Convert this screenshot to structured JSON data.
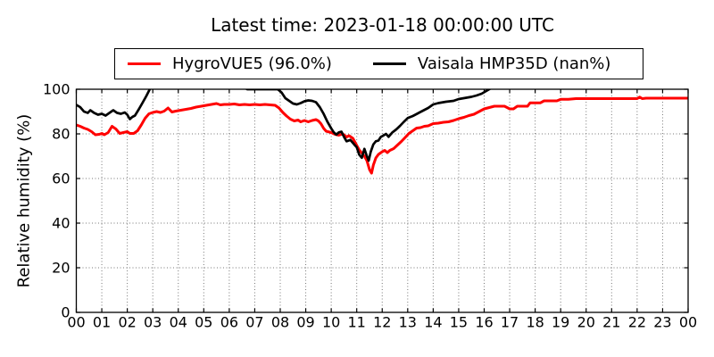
{
  "chart_data": {
    "type": "line",
    "title": "Latest time: 2023-01-18 00:00:00 UTC",
    "xlabel": "",
    "ylabel": "Relative humidity (%)",
    "xlim": [
      0,
      24
    ],
    "ylim": [
      0,
      100
    ],
    "x_unit": "hour (UTC)",
    "xtick_hours": [
      0,
      1,
      2,
      3,
      4,
      5,
      6,
      7,
      8,
      9,
      10,
      11,
      12,
      13,
      14,
      15,
      16,
      17,
      18,
      19,
      20,
      21,
      22,
      23,
      24
    ],
    "xtick_labels": [
      "00",
      "01",
      "02",
      "03",
      "04",
      "05",
      "06",
      "07",
      "08",
      "09",
      "10",
      "11",
      "12",
      "13",
      "14",
      "15",
      "16",
      "17",
      "18",
      "19",
      "20",
      "21",
      "22",
      "23",
      "00"
    ],
    "ytick_values": [
      0,
      20,
      40,
      60,
      80,
      100
    ],
    "ytick_labels": [
      "0",
      "20",
      "40",
      "60",
      "80",
      "100"
    ],
    "grid": {
      "style": "dotted",
      "color": "#777777",
      "on": true
    },
    "legend_position": "upper center, above axes",
    "series": [
      {
        "name": "HygroVUE5",
        "legend_label": "HygroVUE5 (96.0%)",
        "color": "#ff0000",
        "line_width": 3,
        "points": [
          [
            0,
            84
          ],
          [
            0.15,
            83.4
          ],
          [
            0.3,
            82.6
          ],
          [
            0.45,
            82
          ],
          [
            0.6,
            81
          ],
          [
            0.75,
            79.6
          ],
          [
            0.9,
            79.8
          ],
          [
            1.0,
            80.2
          ],
          [
            1.1,
            79.6
          ],
          [
            1.25,
            80.6
          ],
          [
            1.4,
            83.4
          ],
          [
            1.55,
            82.2
          ],
          [
            1.7,
            80.2
          ],
          [
            1.85,
            80.6
          ],
          [
            2.0,
            81
          ],
          [
            2.1,
            80.2
          ],
          [
            2.25,
            80.2
          ],
          [
            2.4,
            81.4
          ],
          [
            2.55,
            84
          ],
          [
            2.7,
            87
          ],
          [
            2.85,
            89
          ],
          [
            3.0,
            89.6
          ],
          [
            3.15,
            90
          ],
          [
            3.3,
            89.6
          ],
          [
            3.45,
            90.2
          ],
          [
            3.6,
            91.6
          ],
          [
            3.75,
            89.8
          ],
          [
            3.9,
            90.2
          ],
          [
            4.1,
            90.6
          ],
          [
            4.3,
            91
          ],
          [
            4.5,
            91.4
          ],
          [
            4.7,
            92
          ],
          [
            4.9,
            92.4
          ],
          [
            5.1,
            92.8
          ],
          [
            5.3,
            93.2
          ],
          [
            5.5,
            93.6
          ],
          [
            5.65,
            93
          ],
          [
            5.8,
            93.2
          ],
          [
            6.0,
            93.2
          ],
          [
            6.2,
            93.4
          ],
          [
            6.4,
            93
          ],
          [
            6.6,
            93.2
          ],
          [
            6.8,
            93
          ],
          [
            7.0,
            93.2
          ],
          [
            7.2,
            93
          ],
          [
            7.4,
            93.2
          ],
          [
            7.6,
            93
          ],
          [
            7.8,
            92.8
          ],
          [
            7.95,
            91.6
          ],
          [
            8.1,
            89.6
          ],
          [
            8.25,
            88
          ],
          [
            8.4,
            86.6
          ],
          [
            8.55,
            85.8
          ],
          [
            8.7,
            86.2
          ],
          [
            8.8,
            85.4
          ],
          [
            8.95,
            86
          ],
          [
            9.1,
            85.4
          ],
          [
            9.25,
            86
          ],
          [
            9.4,
            86.4
          ],
          [
            9.5,
            85.8
          ],
          [
            9.6,
            84.5
          ],
          [
            9.7,
            82.5
          ],
          [
            9.8,
            81.2
          ],
          [
            10.0,
            80.6
          ],
          [
            10.15,
            79.8
          ],
          [
            10.3,
            79.4
          ],
          [
            10.45,
            80
          ],
          [
            10.6,
            78.6
          ],
          [
            10.7,
            79.2
          ],
          [
            10.85,
            78
          ],
          [
            11.0,
            74.8
          ],
          [
            11.1,
            72.8
          ],
          [
            11.2,
            71.4
          ],
          [
            11.3,
            70
          ],
          [
            11.4,
            68
          ],
          [
            11.5,
            64
          ],
          [
            11.58,
            62.4
          ],
          [
            11.65,
            66
          ],
          [
            11.75,
            69.2
          ],
          [
            11.85,
            70.8
          ],
          [
            12.0,
            72
          ],
          [
            12.1,
            72.6
          ],
          [
            12.2,
            71.6
          ],
          [
            12.3,
            72.6
          ],
          [
            12.45,
            73.4
          ],
          [
            12.6,
            75
          ],
          [
            12.75,
            76.6
          ],
          [
            12.9,
            78.4
          ],
          [
            13.05,
            80.2
          ],
          [
            13.2,
            81.4
          ],
          [
            13.35,
            82.6
          ],
          [
            13.5,
            82.8
          ],
          [
            13.65,
            83.4
          ],
          [
            13.8,
            83.6
          ],
          [
            14.0,
            84.6
          ],
          [
            14.2,
            84.8
          ],
          [
            14.4,
            85.2
          ],
          [
            14.6,
            85.4
          ],
          [
            14.8,
            86
          ],
          [
            15.0,
            86.8
          ],
          [
            15.2,
            87.4
          ],
          [
            15.4,
            88.2
          ],
          [
            15.6,
            88.8
          ],
          [
            15.8,
            90
          ],
          [
            16.0,
            91.2
          ],
          [
            16.2,
            91.8
          ],
          [
            16.4,
            92.4
          ],
          [
            16.6,
            92.4
          ],
          [
            16.8,
            92.4
          ],
          [
            17.0,
            91.2
          ],
          [
            17.15,
            91.2
          ],
          [
            17.3,
            92.4
          ],
          [
            17.5,
            92.4
          ],
          [
            17.7,
            92.4
          ],
          [
            17.8,
            93.9
          ],
          [
            18.0,
            93.9
          ],
          [
            18.2,
            93.9
          ],
          [
            18.35,
            94.8
          ],
          [
            18.6,
            94.8
          ],
          [
            18.85,
            94.8
          ],
          [
            19.0,
            95.5
          ],
          [
            19.3,
            95.5
          ],
          [
            19.6,
            95.8
          ],
          [
            20.0,
            95.8
          ],
          [
            20.4,
            95.8
          ],
          [
            20.8,
            95.8
          ],
          [
            21.2,
            95.8
          ],
          [
            21.6,
            95.8
          ],
          [
            22.0,
            95.8
          ],
          [
            22.1,
            96.5
          ],
          [
            22.2,
            95.8
          ],
          [
            22.35,
            96.0
          ],
          [
            22.7,
            96.0
          ],
          [
            23.0,
            96.0
          ],
          [
            23.4,
            96.0
          ],
          [
            23.7,
            96.0
          ],
          [
            24.0,
            96.0
          ]
        ]
      },
      {
        "name": "Vaisala HMP35D",
        "legend_label": "Vaisala HMP35D (nan%)",
        "color": "#000000",
        "line_width": 2.7,
        "points": [
          [
            0,
            93
          ],
          [
            0.15,
            92
          ],
          [
            0.3,
            90
          ],
          [
            0.45,
            89.4
          ],
          [
            0.55,
            90.6
          ],
          [
            0.7,
            89.4
          ],
          [
            0.85,
            88.6
          ],
          [
            1.0,
            89
          ],
          [
            1.15,
            88.2
          ],
          [
            1.3,
            89.4
          ],
          [
            1.45,
            90.6
          ],
          [
            1.6,
            89.4
          ],
          [
            1.75,
            89
          ],
          [
            1.9,
            89.6
          ],
          [
            2.0,
            88.6
          ],
          [
            2.1,
            86.6
          ],
          [
            2.2,
            87.6
          ],
          [
            2.3,
            88.2
          ],
          [
            2.45,
            91
          ],
          [
            2.6,
            94
          ],
          [
            2.75,
            97
          ],
          [
            2.9,
            100.4
          ],
          [
            3.05,
            102.5
          ],
          [
            3.2,
            104
          ],
          [
            6.35,
            104
          ],
          [
            6.55,
            101
          ],
          [
            6.7,
            100.0
          ],
          [
            7.0,
            100.0
          ],
          [
            7.3,
            100.0
          ],
          [
            7.6,
            100.0
          ],
          [
            7.9,
            100.0
          ],
          [
            8.05,
            98.6
          ],
          [
            8.2,
            96
          ],
          [
            8.35,
            94.8
          ],
          [
            8.5,
            93.6
          ],
          [
            8.65,
            93.2
          ],
          [
            8.8,
            93.8
          ],
          [
            8.95,
            94.6
          ],
          [
            9.1,
            95
          ],
          [
            9.25,
            94.8
          ],
          [
            9.4,
            94.2
          ],
          [
            9.55,
            92
          ],
          [
            9.7,
            89
          ],
          [
            9.85,
            85.5
          ],
          [
            10.0,
            82.5
          ],
          [
            10.1,
            80.7
          ],
          [
            10.2,
            79.7
          ],
          [
            10.3,
            80.7
          ],
          [
            10.4,
            81
          ],
          [
            10.5,
            78.7
          ],
          [
            10.6,
            76.7
          ],
          [
            10.75,
            77.3
          ],
          [
            10.9,
            75.3
          ],
          [
            11.0,
            74
          ],
          [
            11.1,
            70.7
          ],
          [
            11.2,
            69.3
          ],
          [
            11.3,
            73.3
          ],
          [
            11.4,
            70
          ],
          [
            11.47,
            68
          ],
          [
            11.55,
            72
          ],
          [
            11.65,
            75.3
          ],
          [
            11.75,
            76.7
          ],
          [
            11.85,
            77
          ],
          [
            11.95,
            78.7
          ],
          [
            12.05,
            79.3
          ],
          [
            12.15,
            80
          ],
          [
            12.25,
            78.7
          ],
          [
            12.4,
            80.7
          ],
          [
            12.55,
            82
          ],
          [
            12.7,
            83.6
          ],
          [
            12.85,
            85.4
          ],
          [
            13.0,
            87.1
          ],
          [
            13.2,
            88
          ],
          [
            13.4,
            89.2
          ],
          [
            13.6,
            90.4
          ],
          [
            13.8,
            91.6
          ],
          [
            14.0,
            93.2
          ],
          [
            14.2,
            93.8
          ],
          [
            14.5,
            94.4
          ],
          [
            14.8,
            94.8
          ],
          [
            15.0,
            95.6
          ],
          [
            15.2,
            96
          ],
          [
            15.5,
            96.6
          ],
          [
            15.7,
            97.2
          ],
          [
            15.9,
            98
          ],
          [
            16.05,
            99
          ],
          [
            16.2,
            100
          ],
          [
            16.32,
            101
          ],
          [
            16.45,
            103
          ]
        ]
      }
    ]
  }
}
